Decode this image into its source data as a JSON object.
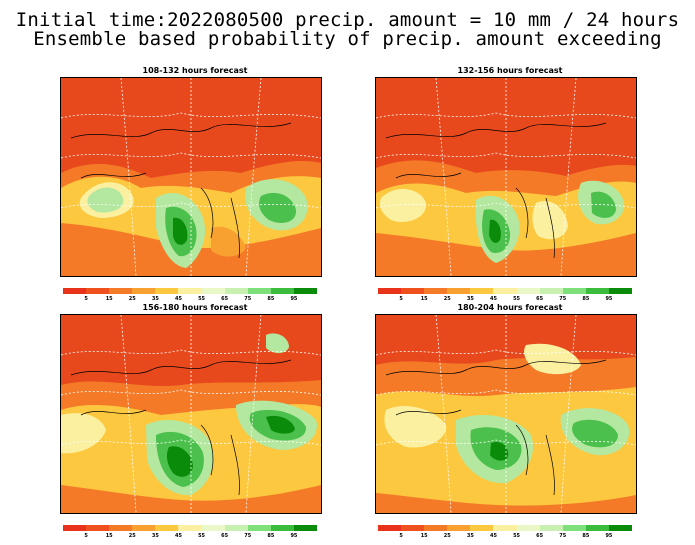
{
  "title": {
    "line1": "Initial time:2022080500 precip. amount = 10 mm / 24 hours",
    "line2": "Ensemble based probability of precip. amount exceeding"
  },
  "panels": [
    {
      "label": "108-132 hours forecast"
    },
    {
      "label": "132-156 hours forecast"
    },
    {
      "label": "156-180 hours forecast"
    },
    {
      "label": "180-204 hours forecast"
    }
  ],
  "colorbar": {
    "labels": [
      "5",
      "15",
      "25",
      "35",
      "45",
      "55",
      "65",
      "75",
      "85",
      "95"
    ],
    "colors": [
      "#e8321a",
      "#f0501e",
      "#f47a28",
      "#f8a030",
      "#fcc840",
      "#fbf0a0",
      "#eaf8c8",
      "#c8f0b0",
      "#7ee07a",
      "#3cbc3c",
      "#0a8c0a"
    ]
  },
  "colors": {
    "low": "#e8491c",
    "mid": "#f8a030",
    "light": "#fbf0a0",
    "green_light": "#b4e8a0",
    "green": "#4cc04c",
    "green_dark": "#0a8c0a"
  }
}
